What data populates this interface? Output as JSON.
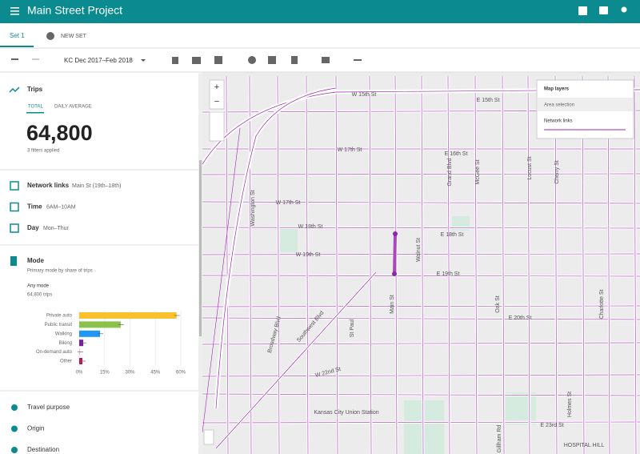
{
  "header": {
    "title": "Main Street Project"
  },
  "tabs": [
    "Set 1",
    "NEW SET"
  ],
  "toolbar": {
    "date_range": "KC Dec 2017–Feb 2018"
  },
  "trips": {
    "title": "Trips",
    "tabs": [
      "TOTAL",
      "DAILY AVERAGE"
    ],
    "value": "64,800",
    "note": "3 filters applied"
  },
  "filters": [
    {
      "label": "Network links",
      "value": "Main St (19th–18th)"
    },
    {
      "label": "Time",
      "value": "6AM–10AM"
    },
    {
      "label": "Day",
      "value": "Mon–Thur"
    }
  ],
  "mode": {
    "title": "Mode",
    "subtitle": "Primary mode by share of trips",
    "group": "Any mode",
    "group_note": "64,800 trips",
    "chart": {
      "type": "bar",
      "categories": [
        "Private auto",
        "Public transit",
        "Walking",
        "Biking",
        "On-demand auto",
        "Other"
      ],
      "values": [
        57.5,
        24.5,
        12.3,
        2.4,
        0.5,
        1.9
      ],
      "colors": [
        "#fbc02d",
        "#8bc34a",
        "#2196f3",
        "#7b1fa2",
        "#e1bee7",
        "#c2185b"
      ],
      "xlim": [
        0,
        60
      ],
      "xticks": [
        {
          "value": 0,
          "label": "0%"
        },
        {
          "value": 15,
          "label": "15%"
        },
        {
          "value": 30,
          "label": "30%"
        },
        {
          "value": 45,
          "label": "45%"
        },
        {
          "value": 60,
          "label": "60%"
        }
      ]
    }
  },
  "sections": [
    "Travel purpose",
    "Origin",
    "Destination"
  ],
  "map_layers": {
    "title": "Map layers",
    "items": [
      "Area selection",
      "Network links"
    ]
  },
  "map": {
    "labels": [
      "W 15th St",
      "E 15th St",
      "W 17th St",
      "E 16th St",
      "W 17th St",
      "W 18th St",
      "E 18th St",
      "W 19th St",
      "E 19th St",
      "E 20th St",
      "Washington St",
      "Broadway Blvd",
      "Southwest Blvd",
      "St Paul",
      "Main St",
      "Walnut St",
      "Grand Blvd",
      "McGee St",
      "Locust St",
      "Cherry St",
      "Oak St",
      "Charlotte St",
      "W 22nd St",
      "Kansas City Union Station",
      "E 23rd St",
      "Holmes St",
      "Gillham Rd",
      "HOSPITAL HILL"
    ]
  }
}
